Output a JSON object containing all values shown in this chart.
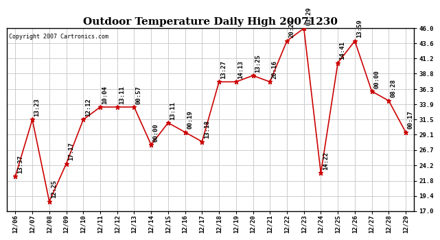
{
  "title": "Outdoor Temperature Daily High 20071230",
  "copyright": "Copyright 2007 Cartronics.com",
  "dates": [
    "12/06",
    "12/07",
    "12/08",
    "12/09",
    "12/10",
    "12/11",
    "12/12",
    "12/13",
    "12/14",
    "12/15",
    "12/16",
    "12/17",
    "12/18",
    "12/19",
    "12/20",
    "12/21",
    "12/22",
    "12/23",
    "12/24",
    "12/25",
    "12/26",
    "12/27",
    "12/28",
    "12/29"
  ],
  "values": [
    22.5,
    31.5,
    18.5,
    24.5,
    31.5,
    33.5,
    33.5,
    33.5,
    27.5,
    31.0,
    29.5,
    28.0,
    37.5,
    37.5,
    38.5,
    37.5,
    44.0,
    46.0,
    23.0,
    40.5,
    44.0,
    36.0,
    34.5,
    29.5
  ],
  "time_labels": [
    "13:37",
    "13:23",
    "12:25",
    "17:17",
    "12:12",
    "10:04",
    "13:11",
    "00:57",
    "00:00",
    "13:11",
    "00:19",
    "13:18",
    "13:27",
    "14:13",
    "13:25",
    "20:16",
    "20:23",
    "03:29",
    "14:22",
    "14:41",
    "13:59",
    "00:00",
    "08:28",
    "00:17"
  ],
  "yticks": [
    17.0,
    19.4,
    21.8,
    24.2,
    26.7,
    29.1,
    31.5,
    33.9,
    36.3,
    38.8,
    41.2,
    43.6,
    46.0
  ],
  "ylim": [
    17.0,
    46.0
  ],
  "line_color": "#cc0000",
  "marker_color": "#cc0000",
  "bg_color": "#ffffff",
  "grid_color": "#cccccc",
  "title_fontsize": 11,
  "label_fontsize": 6.5,
  "copyright_fontsize": 6,
  "tick_fontsize": 6.5
}
